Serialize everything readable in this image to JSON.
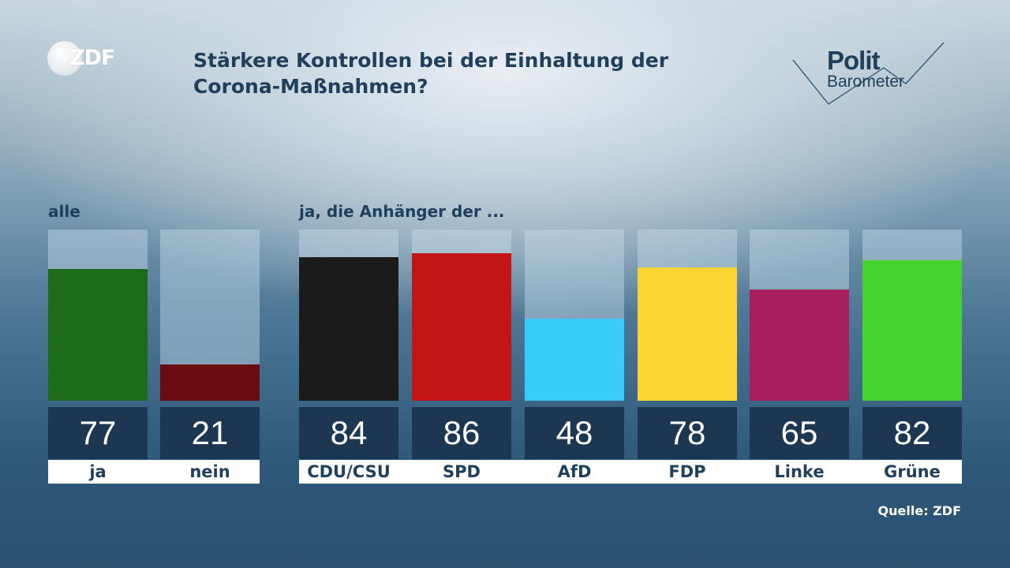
{
  "brand": {
    "logo_text": "ZDF",
    "politbarometer_top": "Polit",
    "politbarometer_bottom": "Barometer"
  },
  "title_line1": "Stärkere Kontrollen bei der Einhaltung der",
  "title_line2": "Corona-Maßnahmen?",
  "group_labels": {
    "all": "alle",
    "parties": "ja, die Anhänger der ..."
  },
  "source": "Quelle: ZDF",
  "chart_data": {
    "type": "bar",
    "ylim": [
      0,
      100
    ],
    "categories": [
      "ja",
      "nein",
      "CDU/CSU",
      "SPD",
      "AfD",
      "FDP",
      "Linke",
      "Grüne"
    ],
    "values": [
      77,
      21,
      84,
      86,
      48,
      78,
      65,
      82
    ],
    "value_labels": [
      "77",
      "21",
      "84",
      "86",
      "48",
      "78",
      "65",
      "82"
    ],
    "colors": [
      "#1c6b16",
      "#6a0c12",
      "#1b1b1b",
      "#c21616",
      "#38ccfb",
      "#fbd632",
      "#a81f5f",
      "#44d42e"
    ],
    "groups": [
      {
        "label": "alle",
        "categories": [
          "ja",
          "nein"
        ]
      },
      {
        "label": "ja, die Anhänger der ...",
        "categories": [
          "CDU/CSU",
          "SPD",
          "AfD",
          "FDP",
          "Linke",
          "Grüne"
        ]
      }
    ]
  }
}
